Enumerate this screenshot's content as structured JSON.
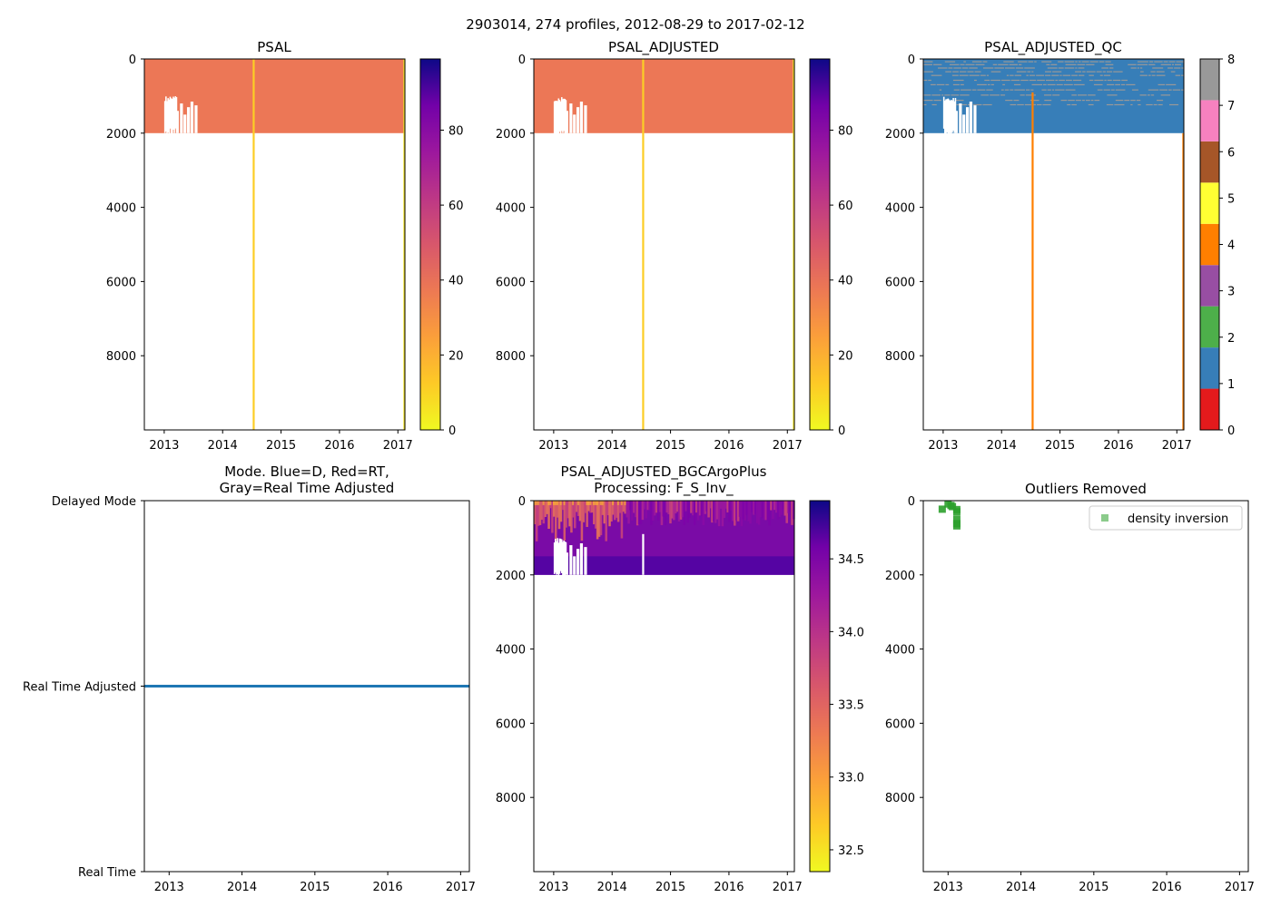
{
  "suptitle": "2903014, 274 profiles, 2012-08-29 to 2017-02-12",
  "chart_data": [
    {
      "type": "heatmap",
      "title": "PSAL",
      "x_ticks": [
        "2013",
        "2014",
        "2015",
        "2016",
        "2017"
      ],
      "x_tick_values": [
        2013,
        2014,
        2015,
        2016,
        2017
      ],
      "xlim": [
        2012.66,
        2017.12
      ],
      "y_ticks": [
        "0",
        "2000",
        "4000",
        "6000",
        "8000"
      ],
      "y_tick_values": [
        0,
        2000,
        4000,
        6000,
        8000
      ],
      "ylim": [
        10000,
        0
      ],
      "fill_value": 34.5,
      "fill_depth_max": 2000,
      "anomaly_profiles": [
        {
          "time": 2014.53,
          "depth_max": 10000,
          "value": 8
        },
        {
          "time": 2017.11,
          "depth_max": 10000,
          "value": 4
        }
      ],
      "colorbar": {
        "colormap": "plasma_r",
        "range": [
          0,
          99
        ],
        "ticks": [
          "0",
          "20",
          "40",
          "60",
          "80"
        ],
        "tick_values": [
          0,
          20,
          40,
          60,
          80
        ]
      }
    },
    {
      "type": "heatmap",
      "title": "PSAL_ADJUSTED",
      "x_ticks": [
        "2013",
        "2014",
        "2015",
        "2016",
        "2017"
      ],
      "x_tick_values": [
        2013,
        2014,
        2015,
        2016,
        2017
      ],
      "xlim": [
        2012.66,
        2017.12
      ],
      "y_ticks": [
        "0",
        "2000",
        "4000",
        "6000",
        "8000"
      ],
      "y_tick_values": [
        0,
        2000,
        4000,
        6000,
        8000
      ],
      "ylim": [
        10000,
        0
      ],
      "fill_value": 34.5,
      "fill_depth_max": 2000,
      "anomaly_profiles": [
        {
          "time": 2014.53,
          "depth_max": 10000,
          "value": 8
        },
        {
          "time": 2017.11,
          "depth_max": 10000,
          "value": 4
        }
      ],
      "colorbar": {
        "colormap": "plasma_r",
        "range": [
          0,
          99
        ],
        "ticks": [
          "0",
          "20",
          "40",
          "60",
          "80"
        ],
        "tick_values": [
          0,
          20,
          40,
          60,
          80
        ]
      }
    },
    {
      "type": "heatmap",
      "title": "PSAL_ADJUSTED_QC",
      "x_ticks": [
        "2013",
        "2014",
        "2015",
        "2016",
        "2017"
      ],
      "x_tick_values": [
        2013,
        2014,
        2015,
        2016,
        2017
      ],
      "xlim": [
        2012.66,
        2017.12
      ],
      "y_ticks": [
        "0",
        "2000",
        "4000",
        "6000",
        "8000"
      ],
      "y_tick_values": [
        0,
        2000,
        4000,
        6000,
        8000
      ],
      "ylim": [
        10000,
        0
      ],
      "dominant_flag": 1,
      "secondary_flag": 8,
      "fill_depth_max": 2000,
      "flag_rows_depth": [
        60,
        140,
        230,
        330,
        430,
        560,
        680,
        820,
        960,
        1100,
        1220
      ],
      "anomaly_profiles": [
        {
          "time": 2014.53,
          "depth_max": 10000,
          "flag": 4
        },
        {
          "time": 2017.11,
          "depth_max": 10000,
          "flag": 4
        }
      ],
      "colorbar": {
        "colormap": "Set1",
        "range": [
          0,
          8
        ],
        "ticks": [
          "0",
          "1",
          "2",
          "3",
          "4",
          "5",
          "6",
          "7",
          "8"
        ],
        "tick_values": [
          0,
          1,
          2,
          3,
          4,
          5,
          6,
          7,
          8
        ],
        "colors": [
          "#e41a1c",
          "#377eb8",
          "#4daf4a",
          "#984ea3",
          "#ff7f00",
          "#ffff33",
          "#a65628",
          "#f781bf",
          "#999999"
        ]
      }
    },
    {
      "type": "line",
      "title": "Mode. Blue=D, Red=RT,\nGray=Real Time Adjusted",
      "x_ticks": [
        "2013",
        "2014",
        "2015",
        "2016",
        "2017"
      ],
      "x_tick_values": [
        2013,
        2014,
        2015,
        2016,
        2017
      ],
      "xlim": [
        2012.66,
        2017.12
      ],
      "y_ticks": [
        "Delayed Mode",
        "Real Time Adjusted",
        "Real Time"
      ],
      "y_tick_values": [
        2,
        1,
        0
      ],
      "ylim": [
        0,
        2
      ],
      "series": [
        {
          "name": "mode",
          "color": "#1f77b4",
          "x": [
            2012.66,
            2017.12
          ],
          "y": [
            1,
            1
          ]
        }
      ]
    },
    {
      "type": "heatmap",
      "title": "PSAL_ADJUSTED_BGCArgoPlus\nProcessing: F_S_Inv_",
      "x_ticks": [
        "2013",
        "2014",
        "2015",
        "2016",
        "2017"
      ],
      "x_tick_values": [
        2013,
        2014,
        2015,
        2016,
        2017
      ],
      "xlim": [
        2012.66,
        2017.12
      ],
      "y_ticks": [
        "0",
        "2000",
        "4000",
        "6000",
        "8000"
      ],
      "y_tick_values": [
        0,
        2000,
        4000,
        6000,
        8000
      ],
      "ylim": [
        10000,
        0
      ],
      "fill_depth_max": 2000,
      "surface_value": 33.2,
      "deep_value": 34.6,
      "colorbar": {
        "colormap": "plasma_r",
        "range": [
          32.35,
          34.9
        ],
        "ticks": [
          "32.5",
          "33.0",
          "33.5",
          "34.0",
          "34.5"
        ],
        "tick_values": [
          32.5,
          33.0,
          33.5,
          34.0,
          34.5
        ]
      }
    },
    {
      "type": "scatter",
      "title": "Outliers Removed",
      "x_ticks": [
        "2013",
        "2014",
        "2015",
        "2016",
        "2017"
      ],
      "x_tick_values": [
        2013,
        2014,
        2015,
        2016,
        2017
      ],
      "xlim": [
        2012.66,
        2017.12
      ],
      "y_ticks": [
        "0",
        "2000",
        "4000",
        "6000",
        "8000"
      ],
      "y_tick_values": [
        0,
        2000,
        4000,
        6000,
        8000
      ],
      "ylim": [
        10000,
        0
      ],
      "legend": {
        "label": "density inversion",
        "placement": "top-right"
      },
      "series": [
        {
          "name": "density inversion",
          "color": "#2ca02c",
          "x": [
            2012.92,
            2013.0,
            2013.04,
            2013.06,
            2013.12,
            2013.12,
            2013.12,
            2013.12,
            2013.12
          ],
          "y": [
            230,
            90,
            130,
            160,
            240,
            300,
            500,
            620,
            680
          ]
        }
      ]
    }
  ]
}
